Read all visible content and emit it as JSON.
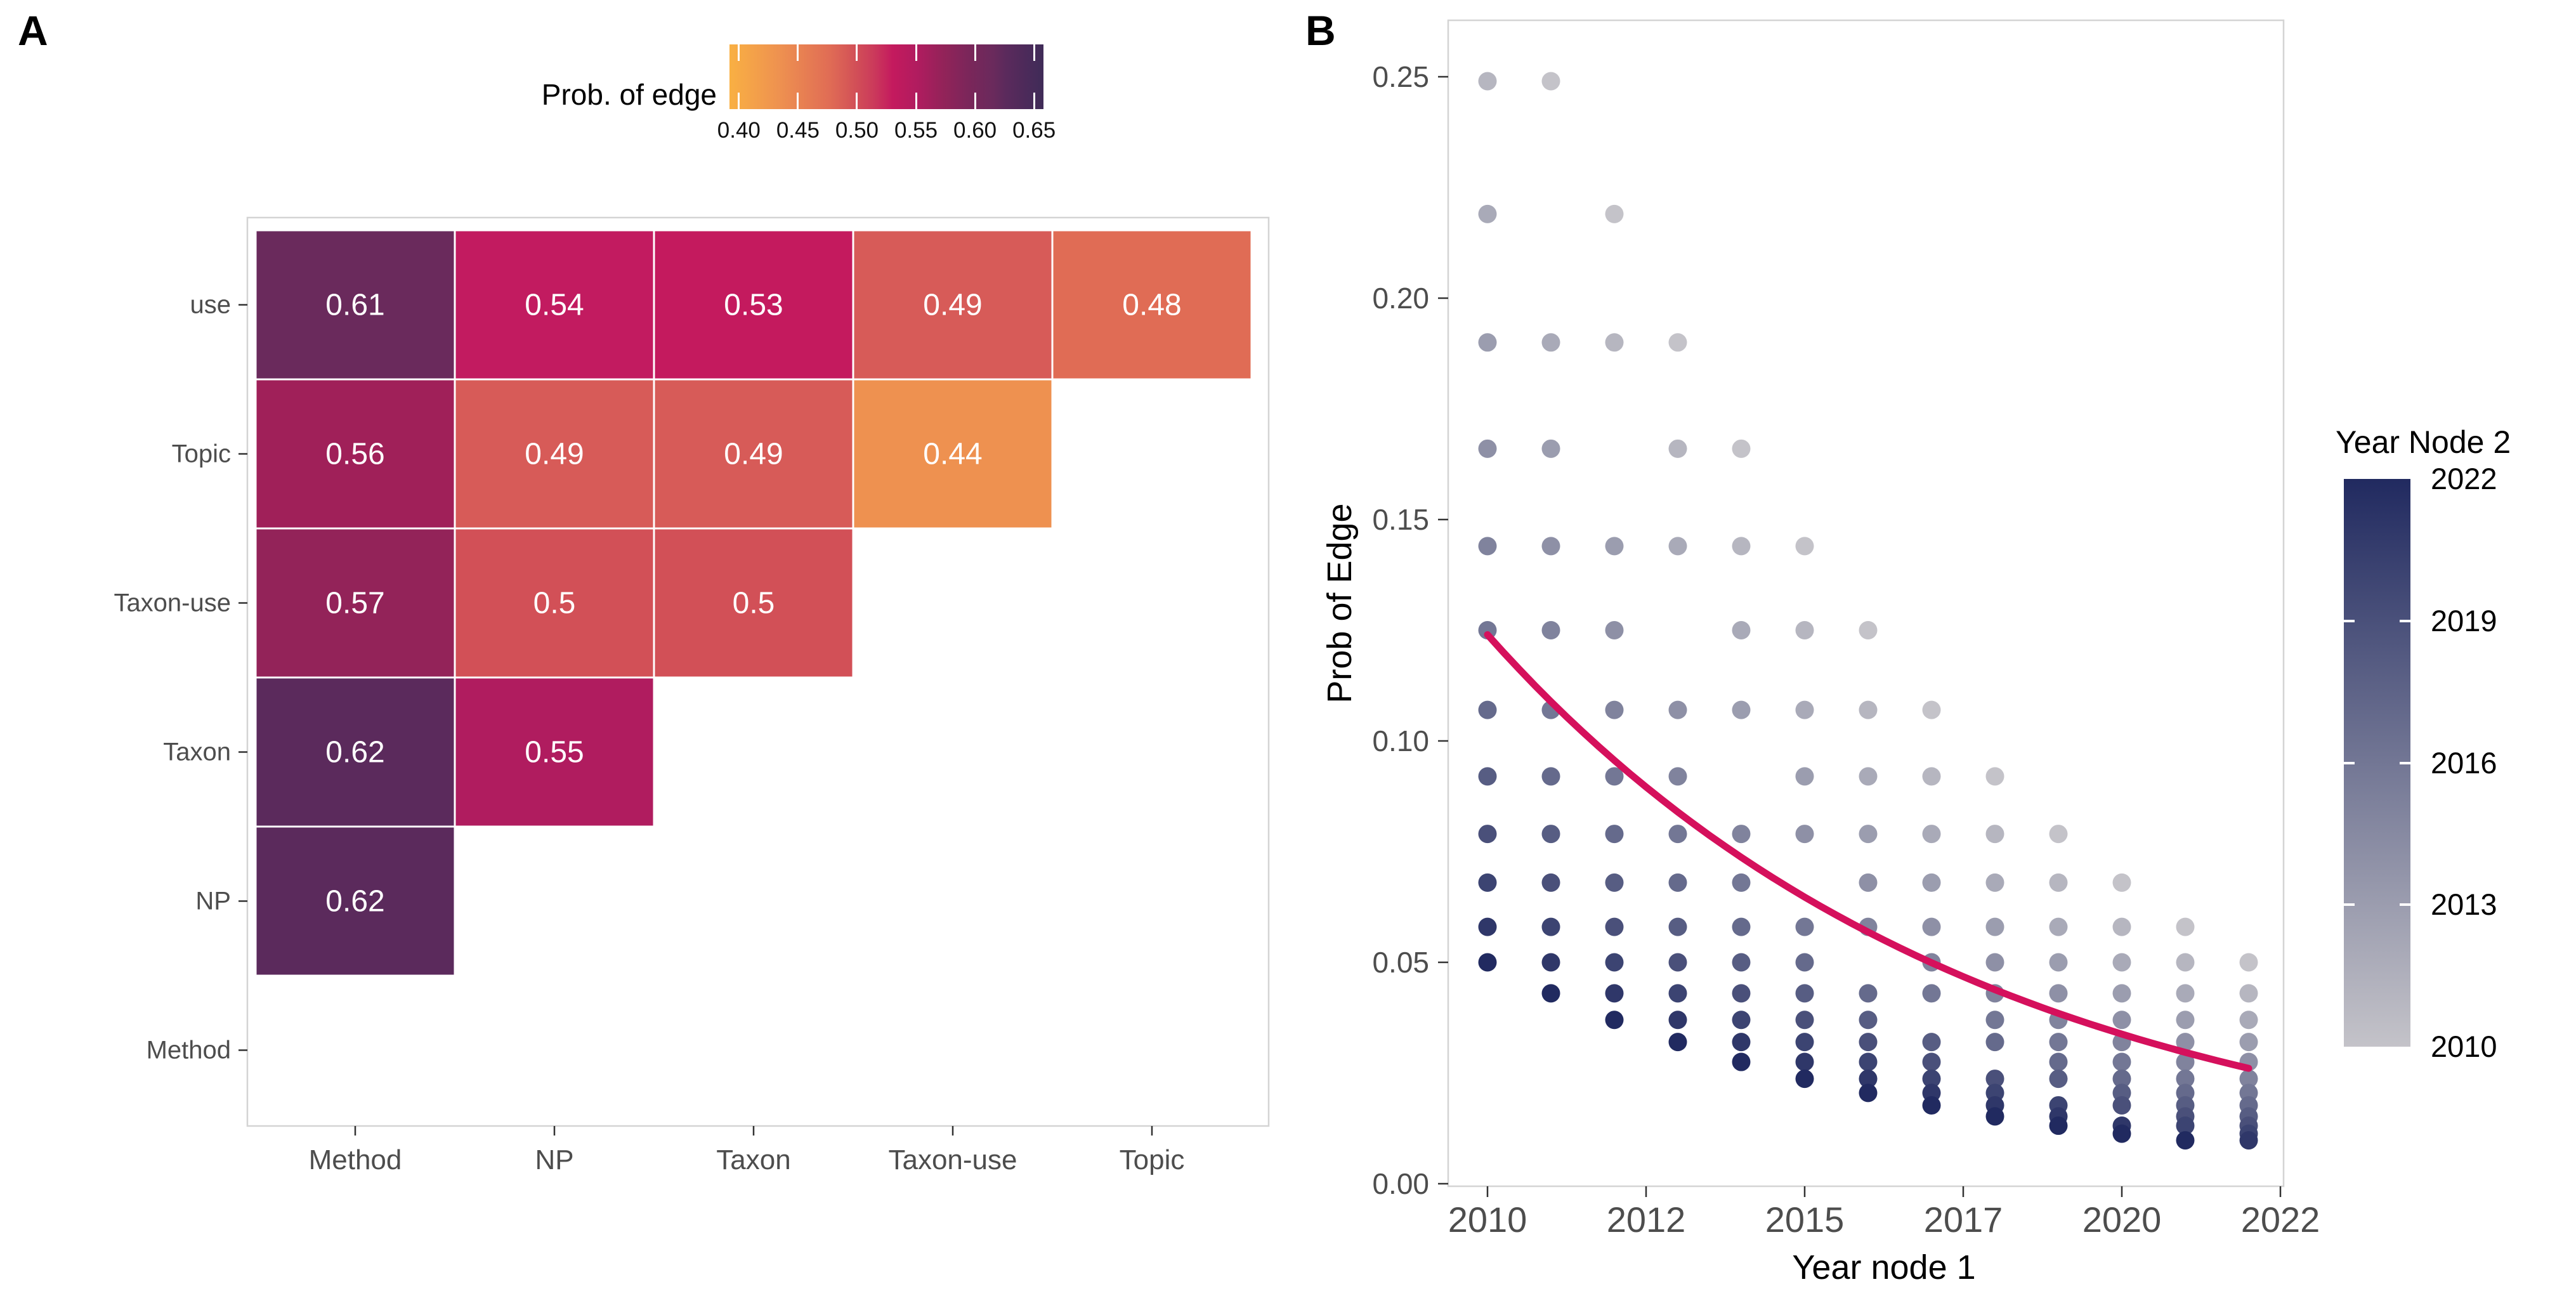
{
  "figure": {
    "panel_a_letter": "A",
    "panel_b_letter": "B",
    "background": "#FFFFFF",
    "axis_text_color": "#4D4D4D",
    "panel_border_color": "#D4D4D4"
  },
  "chart_data": [
    {
      "type": "heatmap",
      "panel": "A",
      "legend_title": "Prob. of edge",
      "legend_ticks": [
        "0.40",
        "0.45",
        "0.50",
        "0.55",
        "0.60",
        "0.65"
      ],
      "legend_gradient": [
        {
          "pos": 0.0,
          "color": "#F9B043"
        },
        {
          "pos": 0.16,
          "color": "#EE9150"
        },
        {
          "pos": 0.32,
          "color": "#E06C55"
        },
        {
          "pos": 0.4,
          "color": "#D25057"
        },
        {
          "pos": 0.46,
          "color": "#CB3A5B"
        },
        {
          "pos": 0.52,
          "color": "#C41A5E"
        },
        {
          "pos": 0.6,
          "color": "#B01C5F"
        },
        {
          "pos": 0.68,
          "color": "#932359"
        },
        {
          "pos": 0.76,
          "color": "#7B265A"
        },
        {
          "pos": 0.84,
          "color": "#6A2A5C"
        },
        {
          "pos": 0.88,
          "color": "#5B2A5C"
        },
        {
          "pos": 1.0,
          "color": "#3F2B58"
        }
      ],
      "x_categories": [
        "Method",
        "NP",
        "Taxon",
        "Taxon-use",
        "Topic"
      ],
      "y_categories": [
        "use",
        "Topic",
        "Taxon-use",
        "Taxon",
        "NP",
        "Method"
      ],
      "rows": [
        {
          "label": "use",
          "cells": [
            {
              "text": "0.61",
              "value": 0.61,
              "color": "#6A2A5C"
            },
            {
              "text": "0.54",
              "value": 0.54,
              "color": "#C21B60"
            },
            {
              "text": "0.53",
              "value": 0.53,
              "color": "#C41A5E"
            },
            {
              "text": "0.49",
              "value": 0.49,
              "color": "#D75B58"
            },
            {
              "text": "0.48",
              "value": 0.48,
              "color": "#E06C55"
            }
          ]
        },
        {
          "label": "Topic",
          "cells": [
            {
              "text": "0.56",
              "value": 0.56,
              "color": "#A02059"
            },
            {
              "text": "0.49",
              "value": 0.49,
              "color": "#D75B58"
            },
            {
              "text": "0.49",
              "value": 0.49,
              "color": "#D75B58"
            },
            {
              "text": "0.44",
              "value": 0.44,
              "color": "#EE9150"
            }
          ]
        },
        {
          "label": "Taxon-use",
          "cells": [
            {
              "text": "0.57",
              "value": 0.57,
              "color": "#932359"
            },
            {
              "text": "0.5",
              "value": 0.5,
              "color": "#D25057"
            },
            {
              "text": "0.5",
              "value": 0.5,
              "color": "#D25057"
            }
          ]
        },
        {
          "label": "Taxon",
          "cells": [
            {
              "text": "0.62",
              "value": 0.62,
              "color": "#5B2A5C"
            },
            {
              "text": "0.55",
              "value": 0.55,
              "color": "#B01C5F"
            }
          ]
        },
        {
          "label": "NP",
          "cells": [
            {
              "text": "0.62",
              "value": 0.62,
              "color": "#5B2A5C"
            }
          ]
        },
        {
          "label": "Method",
          "cells": []
        }
      ]
    },
    {
      "type": "scatter",
      "panel": "B",
      "xlabel": "Year node 1",
      "ylabel": "Prob of Edge",
      "x_tick_labels": [
        "2010",
        "2012",
        "2015",
        "2017",
        "2020",
        "2022"
      ],
      "y_tick_labels": [
        "0.00",
        "0.05",
        "0.10",
        "0.15",
        "0.20",
        "0.25"
      ],
      "y_tick_values": [
        0.0,
        0.05,
        0.1,
        0.15,
        0.2,
        0.25
      ],
      "year_min": 2010,
      "year_max": 2022,
      "ylim": [
        0,
        0.263
      ],
      "point_rule": "one point for every ordered pair (year1, year2) with year1 != year2, years 2010-2022; x = year1, y = prob_of_edge_by_year_sum[year1+year2], color = year2",
      "prob_of_edge_by_year_sum": {
        "4021": 0.249,
        "4022": 0.219,
        "4023": 0.19,
        "4024": 0.166,
        "4025": 0.144,
        "4026": 0.125,
        "4027": 0.107,
        "4028": 0.092,
        "4029": 0.079,
        "4030": 0.068,
        "4031": 0.058,
        "4032": 0.05,
        "4033": 0.043,
        "4034": 0.037,
        "4035": 0.032,
        "4036": 0.0275,
        "4037": 0.0237,
        "4038": 0.0205,
        "4039": 0.0177,
        "4040": 0.0152,
        "4041": 0.0131,
        "4042": 0.0113,
        "4043": 0.0098
      },
      "color_legend": {
        "title": "Year Node 2",
        "ticks": [
          "2022",
          "2019",
          "2016",
          "2013",
          "2010"
        ],
        "year_min": 2010,
        "year_max": 2022,
        "color_year_min": "#C4C3C9",
        "color_year_max": "#212A60"
      },
      "trend_line": {
        "color": "#D5105C",
        "y_start": 0.124,
        "y_end": 0.026,
        "decay": 0.13,
        "formula": "y = 0.124 * exp(-0.13 * (x - 2010))"
      }
    }
  ]
}
